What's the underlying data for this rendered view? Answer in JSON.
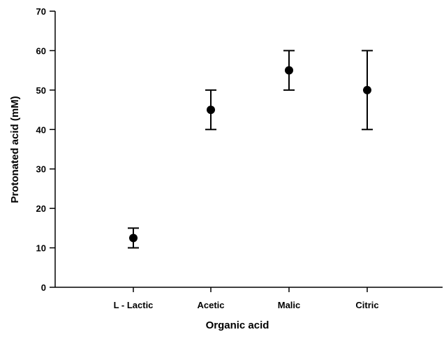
{
  "chart_data": {
    "type": "scatter",
    "title": "",
    "xlabel": "Organic acid",
    "ylabel": "Protonated acid (mM)",
    "categories": [
      "L - Lactic",
      "Acetic",
      "Malic",
      "Citric"
    ],
    "values": [
      12.5,
      45,
      55,
      50
    ],
    "error_low": [
      10,
      40,
      50,
      40
    ],
    "error_high": [
      15,
      50,
      60,
      60
    ],
    "ylim": [
      0,
      70
    ],
    "yticks": [
      0,
      10,
      20,
      30,
      40,
      50,
      60,
      70
    ],
    "grid": false,
    "legend": "none",
    "marker_color": "#000000"
  }
}
